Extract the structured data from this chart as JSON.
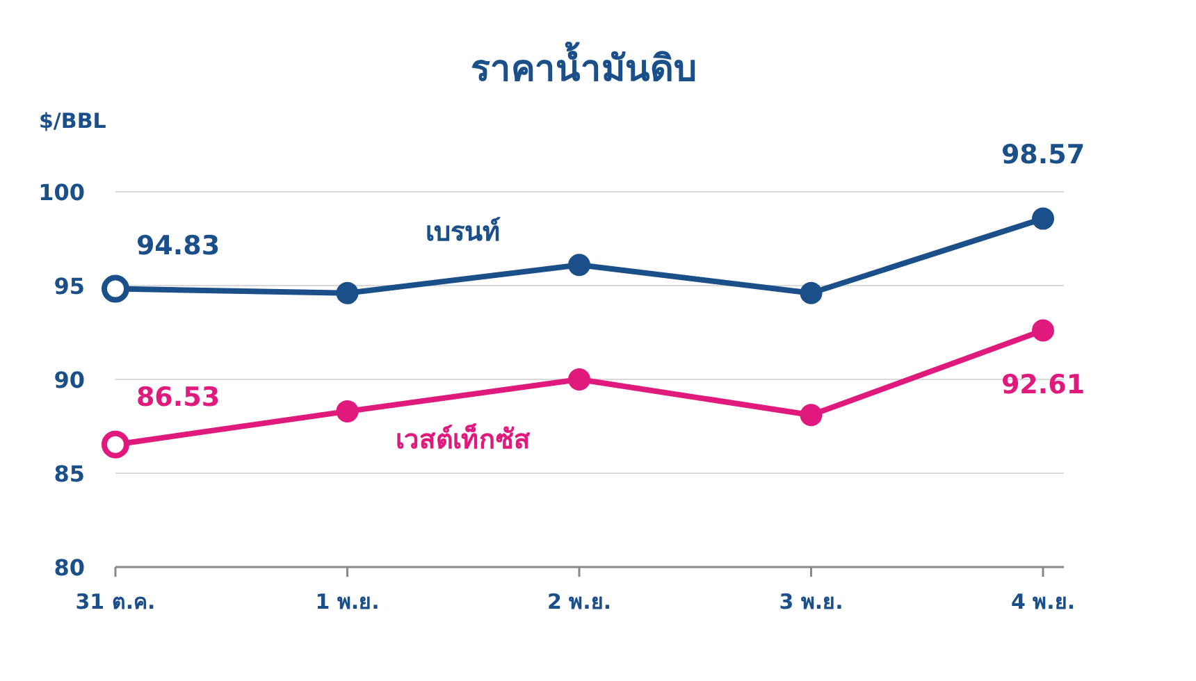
{
  "chart_data": {
    "type": "line",
    "title": "ราคาน้ำมันดิบ",
    "ylabel": "$/BBL",
    "categories": [
      "31 ต.ค.",
      "1 พ.ย.",
      "2 พ.ย.",
      "3 พ.ย.",
      "4 พ.ย."
    ],
    "series": [
      {
        "name": "เบรนท์",
        "color": "#1b4f8a",
        "values": [
          94.83,
          94.6,
          96.1,
          94.6,
          98.57
        ],
        "value_labels": [
          "94.83",
          null,
          null,
          null,
          "98.57"
        ]
      },
      {
        "name": "เวสต์เท็กซัส",
        "color": "#e0197d",
        "values": [
          86.53,
          88.3,
          90.0,
          88.1,
          92.61
        ],
        "value_labels": [
          "86.53",
          null,
          null,
          null,
          "92.61"
        ]
      }
    ],
    "ylim": [
      80,
      100
    ],
    "yticks": [
      80,
      85,
      90,
      95,
      100
    ],
    "grid": "y",
    "marker": "circle",
    "line_style": "solid"
  }
}
